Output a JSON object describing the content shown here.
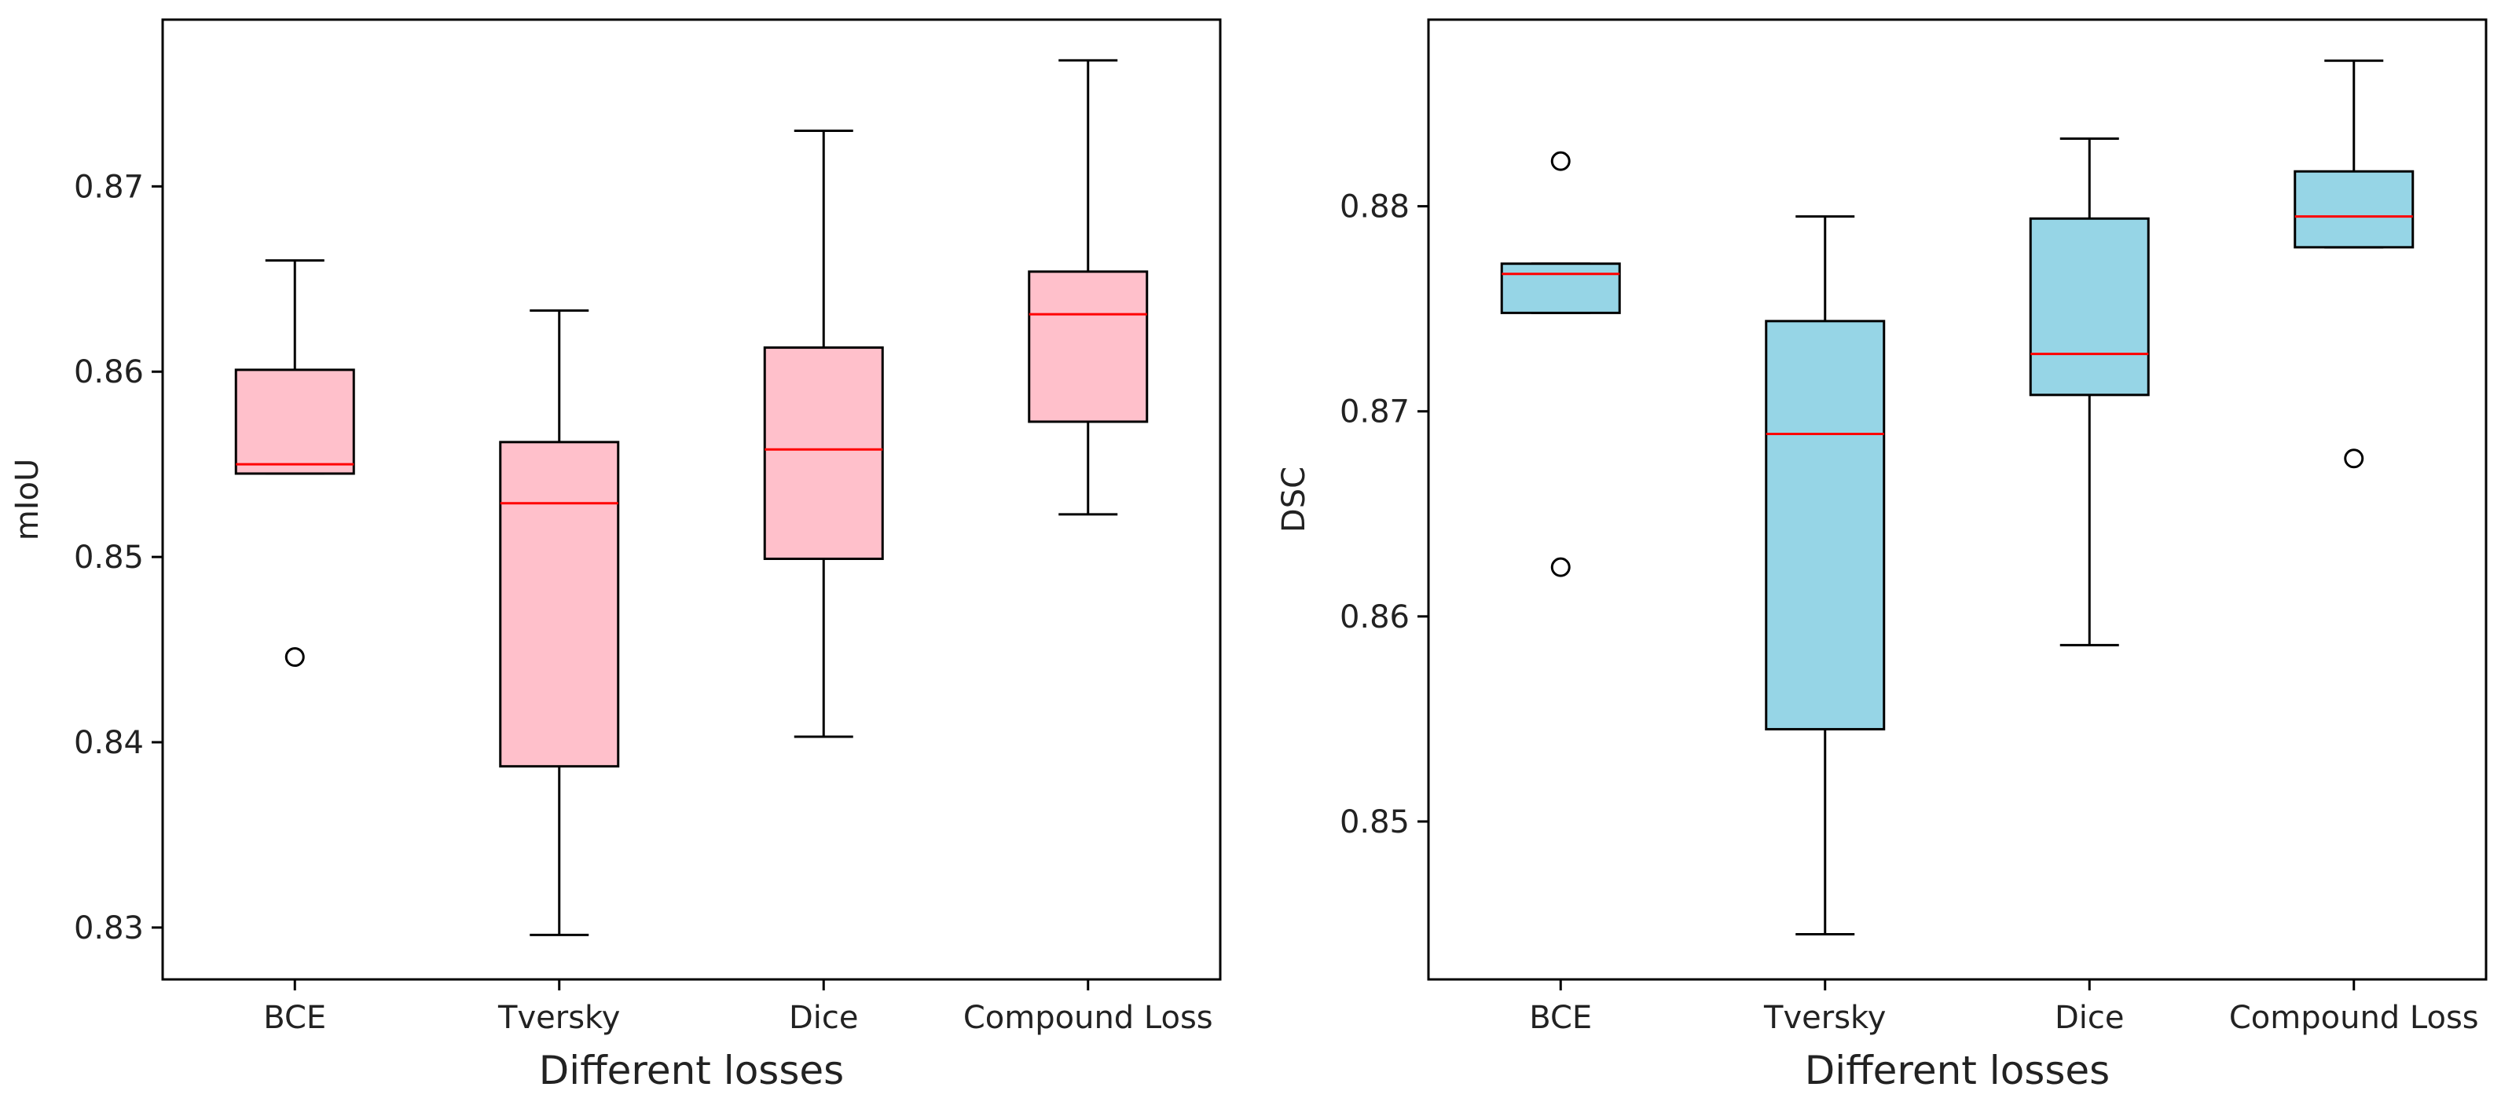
{
  "colors": {
    "left_box_fill": "#ffc0cb",
    "right_box_fill": "#96d5e6",
    "median": "#ff0000",
    "line": "#000000"
  },
  "chart_data": [
    {
      "type": "box",
      "xlabel": "Different losses",
      "ylabel": "mIoU",
      "categories": [
        "BCE",
        "Tversky",
        "Dice",
        "Compound Loss"
      ],
      "ylim": [
        0.8272,
        0.879
      ],
      "yticks": [
        0.83,
        0.84,
        0.85,
        0.86,
        0.87
      ],
      "ytick_labels": [
        "0.83",
        "0.84",
        "0.85",
        "0.86",
        "0.87"
      ],
      "grid": false,
      "boxes": [
        {
          "whislo": 0.8545,
          "q1": 0.8545,
          "med": 0.855,
          "q3": 0.8601,
          "whishi": 0.866,
          "fliers": [
            0.8446
          ]
        },
        {
          "whislo": 0.8296,
          "q1": 0.8387,
          "med": 0.8529,
          "q3": 0.8562,
          "whishi": 0.8633,
          "fliers": []
        },
        {
          "whislo": 0.8403,
          "q1": 0.8499,
          "med": 0.8558,
          "q3": 0.8613,
          "whishi": 0.873,
          "fliers": []
        },
        {
          "whislo": 0.8523,
          "q1": 0.8573,
          "med": 0.8631,
          "q3": 0.8654,
          "whishi": 0.8768,
          "fliers": []
        }
      ]
    },
    {
      "type": "box",
      "xlabel": "Different losses",
      "ylabel": "DSC",
      "categories": [
        "BCE",
        "Tversky",
        "Dice",
        "Compound Loss"
      ],
      "ylim": [
        0.8423,
        0.8891
      ],
      "yticks": [
        0.85,
        0.86,
        0.87,
        0.88
      ],
      "ytick_labels": [
        "0.85",
        "0.86",
        "0.87",
        "0.88"
      ],
      "grid": false,
      "boxes": [
        {
          "whislo": 0.8748,
          "q1": 0.8748,
          "med": 0.8767,
          "q3": 0.8772,
          "whishi": 0.8772,
          "fliers": [
            0.8822,
            0.8624
          ]
        },
        {
          "whislo": 0.8445,
          "q1": 0.8545,
          "med": 0.8689,
          "q3": 0.8744,
          "whishi": 0.8795,
          "fliers": []
        },
        {
          "whislo": 0.8586,
          "q1": 0.8708,
          "med": 0.8728,
          "q3": 0.8794,
          "whishi": 0.8833,
          "fliers": []
        },
        {
          "whislo": 0.878,
          "q1": 0.878,
          "med": 0.8795,
          "q3": 0.8817,
          "whishi": 0.8871,
          "fliers": [
            0.8677
          ]
        }
      ]
    }
  ]
}
